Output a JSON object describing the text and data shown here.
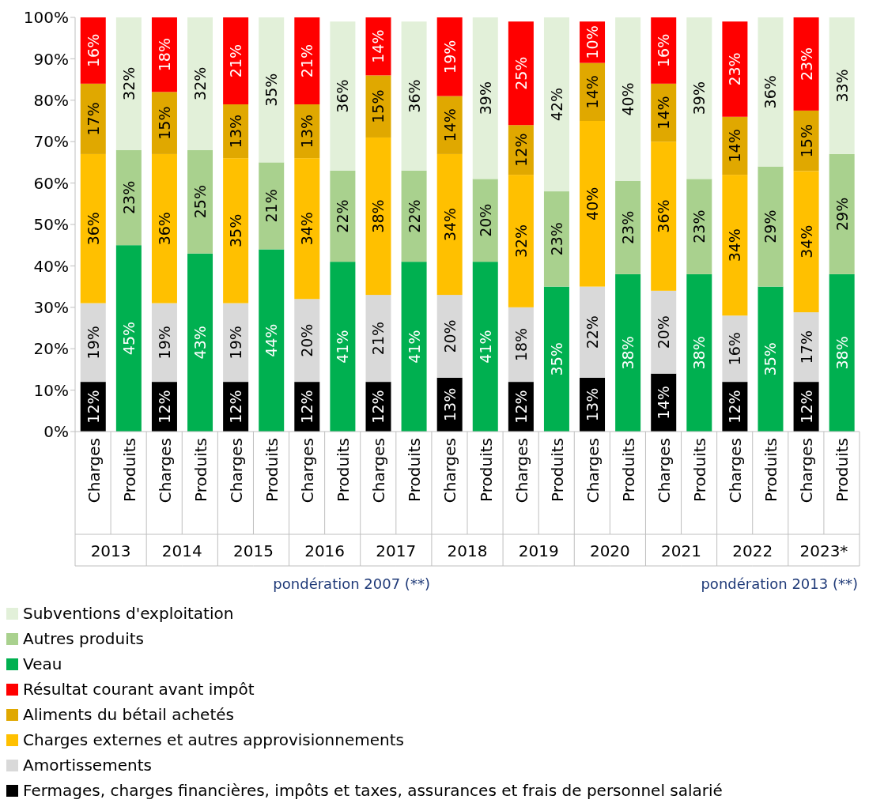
{
  "chart_data": {
    "type": "bar",
    "stacked": true,
    "categories": [
      "Charges",
      "Produits",
      "Charges",
      "Produits",
      "Charges",
      "Produits",
      "Charges",
      "Produits",
      "Charges",
      "Produits",
      "Charges",
      "Produits",
      "Charges",
      "Produits",
      "Charges",
      "Produits",
      "Charges",
      "Produits",
      "Charges",
      "Produits",
      "Charges",
      "Produits"
    ],
    "series": [
      {
        "name": "Fermages, charges financières, impôts et taxes, assurances et frais de personnel salarié",
        "color": "#000000",
        "values": [
          12,
          null,
          12,
          null,
          12,
          null,
          12,
          null,
          12,
          null,
          13,
          null,
          12,
          null,
          13,
          null,
          14,
          null,
          12,
          null,
          12,
          null
        ],
        "value_labels": [
          "12%",
          null,
          "12%",
          null,
          "12%",
          null,
          "12%",
          null,
          "12%",
          null,
          "13%",
          null,
          "12%",
          null,
          "13%",
          null,
          "14%",
          null,
          "12%",
          null,
          "12%",
          null
        ]
      },
      {
        "name": "Amortissements",
        "color": "#d9d9d9",
        "values": [
          19,
          null,
          19,
          null,
          19,
          null,
          20,
          null,
          21,
          null,
          20,
          null,
          18,
          null,
          22,
          null,
          20,
          null,
          16,
          null,
          16.8,
          null
        ],
        "value_labels": [
          "19%",
          null,
          "19%",
          null,
          "19%",
          null,
          "20%",
          null,
          "21%",
          null,
          "20%",
          null,
          "18%",
          null,
          "22%",
          null,
          "20%",
          null,
          "16%",
          null,
          "17%",
          null
        ]
      },
      {
        "name": "Charges externes et autres approvisionnements",
        "color": "#ffc000",
        "values": [
          36,
          null,
          36,
          null,
          35,
          null,
          34,
          null,
          38,
          null,
          34,
          null,
          32,
          null,
          40,
          null,
          36,
          null,
          34,
          null,
          34.1,
          null
        ],
        "value_labels": [
          "36%",
          null,
          "36%",
          null,
          "35%",
          null,
          "34%",
          null,
          "38%",
          null,
          "34%",
          null,
          "32%",
          null,
          "40%",
          null,
          "36%",
          null,
          "34%",
          null,
          "34%",
          null
        ]
      },
      {
        "name": "Aliments du bétail achetés",
        "color": "#e0a800",
        "values": [
          17,
          null,
          15,
          null,
          13,
          null,
          13,
          null,
          15,
          null,
          14,
          null,
          12,
          null,
          14,
          null,
          14,
          null,
          14,
          null,
          14.6,
          null
        ],
        "value_labels": [
          "17%",
          null,
          "15%",
          null,
          "13%",
          null,
          "13%",
          null,
          "15%",
          null,
          "14%",
          null,
          "12%",
          null,
          "14%",
          null,
          "14%",
          null,
          "14%",
          null,
          "15%",
          null
        ]
      },
      {
        "name": "Résultat courant avant impôt",
        "color": "#ff0000",
        "values": [
          16,
          null,
          18,
          null,
          21,
          null,
          21,
          null,
          14,
          null,
          19,
          null,
          25,
          null,
          10,
          null,
          16,
          null,
          23,
          null,
          22.5,
          null
        ],
        "value_labels": [
          "16%",
          null,
          "18%",
          null,
          "21%",
          null,
          "21%",
          null,
          "14%",
          null,
          "19%",
          null,
          "25%",
          null,
          "10%",
          null,
          "16%",
          null,
          "23%",
          null,
          "23%",
          null
        ]
      },
      {
        "name": "Veau",
        "color": "#00b050",
        "values": [
          null,
          45,
          null,
          43,
          null,
          44,
          null,
          41,
          null,
          41,
          null,
          41,
          null,
          35,
          null,
          38,
          null,
          38,
          null,
          35,
          null,
          38
        ],
        "value_labels": [
          null,
          "45%",
          null,
          "43%",
          null,
          "44%",
          null,
          "41%",
          null,
          "41%",
          null,
          "41%",
          null,
          "35%",
          null,
          "38%",
          null,
          "38%",
          null,
          "35%",
          null,
          "38%"
        ]
      },
      {
        "name": "Autres produits",
        "color": "#a9d18e",
        "values": [
          null,
          23,
          null,
          25,
          null,
          21,
          null,
          22,
          null,
          22,
          null,
          20,
          null,
          23,
          null,
          22.5,
          null,
          23,
          null,
          29,
          null,
          29
        ],
        "value_labels": [
          null,
          "23%",
          null,
          "25%",
          null,
          "21%",
          null,
          "22%",
          null,
          "22%",
          null,
          "20%",
          null,
          "23%",
          null,
          "23%",
          null,
          "23%",
          null,
          "29%",
          null,
          "29%"
        ]
      },
      {
        "name": "Subventions d'exploitation",
        "color": "#e2f0d9",
        "values": [
          null,
          32,
          null,
          32,
          null,
          35,
          null,
          36,
          null,
          36,
          null,
          39,
          null,
          42,
          null,
          39.5,
          null,
          39,
          null,
          36,
          null,
          33
        ],
        "value_labels": [
          null,
          "32%",
          null,
          "32%",
          null,
          "35%",
          null,
          "36%",
          null,
          "36%",
          null,
          "39%",
          null,
          "42%",
          null,
          "40%",
          null,
          "39%",
          null,
          "36%",
          null,
          "33%"
        ]
      }
    ],
    "ylim": [
      0,
      100
    ],
    "yticks": [
      {
        "value": 0,
        "label": "0%"
      },
      {
        "value": 10,
        "label": "10%"
      },
      {
        "value": 20,
        "label": "20%"
      },
      {
        "value": 30,
        "label": "30%"
      },
      {
        "value": 40,
        "label": "40%"
      },
      {
        "value": 50,
        "label": "50%"
      },
      {
        "value": 60,
        "label": "60%"
      },
      {
        "value": 70,
        "label": "70%"
      },
      {
        "value": 80,
        "label": "80%"
      },
      {
        "value": 90,
        "label": "90%"
      },
      {
        "value": 100,
        "label": "100%"
      }
    ],
    "annotations": [
      "2013",
      "2014",
      "2015",
      "2016",
      "2017",
      "2018",
      "2019",
      "2020",
      "2021",
      "2022",
      "2023*",
      "pondération 2007 (**)",
      "pondération 2013 (**)"
    ],
    "grid": false,
    "legend": "bottom"
  }
}
